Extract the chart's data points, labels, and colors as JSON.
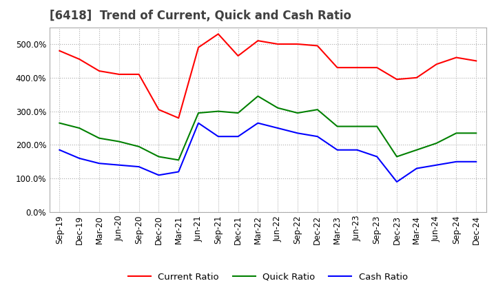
{
  "title": "[6418]  Trend of Current, Quick and Cash Ratio",
  "x_labels": [
    "Sep-19",
    "Dec-19",
    "Mar-20",
    "Jun-20",
    "Sep-20",
    "Dec-20",
    "Mar-21",
    "Jun-21",
    "Sep-21",
    "Dec-21",
    "Mar-22",
    "Jun-22",
    "Sep-22",
    "Dec-22",
    "Mar-23",
    "Jun-23",
    "Sep-23",
    "Dec-23",
    "Mar-24",
    "Jun-24",
    "Sep-24",
    "Dec-24"
  ],
  "current_ratio": [
    480,
    455,
    420,
    410,
    410,
    305,
    280,
    490,
    530,
    465,
    510,
    500,
    500,
    495,
    430,
    430,
    430,
    395,
    400,
    440,
    460,
    450
  ],
  "quick_ratio": [
    265,
    250,
    220,
    210,
    195,
    165,
    155,
    295,
    300,
    295,
    345,
    310,
    295,
    305,
    255,
    255,
    255,
    165,
    185,
    205,
    235,
    235
  ],
  "cash_ratio": [
    185,
    160,
    145,
    140,
    135,
    110,
    120,
    265,
    225,
    225,
    265,
    250,
    235,
    225,
    185,
    185,
    165,
    90,
    130,
    140,
    150,
    150
  ],
  "current_color": "#ff0000",
  "quick_color": "#008000",
  "cash_color": "#0000ff",
  "ylim": [
    0,
    550
  ],
  "yticks": [
    0,
    100,
    200,
    300,
    400,
    500
  ],
  "background_color": "#ffffff",
  "title_fontsize": 12,
  "axis_fontsize": 8.5
}
